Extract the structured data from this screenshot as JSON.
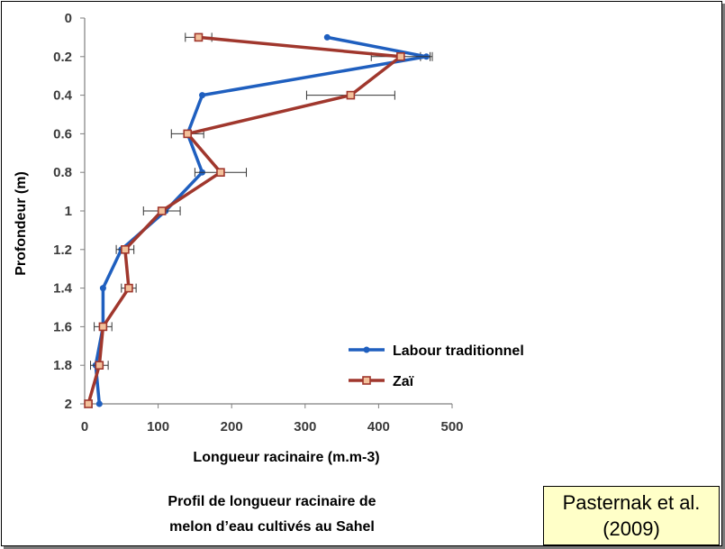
{
  "chart_data": {
    "type": "line",
    "orientation": "depth-profile",
    "xlabel": "Longueur racinaire (m.m-3)",
    "ylabel": "Profondeur (m)",
    "xlim": [
      0,
      500
    ],
    "ylim": [
      2,
      0
    ],
    "x_ticks": [
      "0",
      "100",
      "200",
      "300",
      "400",
      "500"
    ],
    "y_ticks": [
      "0",
      "0.2",
      "0.4",
      "0.6",
      "0.8",
      "1",
      "1.2",
      "1.4",
      "1.6",
      "1.8",
      "2"
    ],
    "grid": false,
    "legend_position": "bottom-right",
    "series": [
      {
        "name": "Labour traditionnel",
        "color": "#1f5fbf",
        "marker": "circle",
        "depth": [
          0.1,
          0.2,
          0.4,
          0.6,
          0.8,
          1.0,
          1.2,
          1.4,
          1.6,
          1.8,
          2.0
        ],
        "values": [
          330,
          465,
          160,
          140,
          160,
          110,
          50,
          25,
          25,
          15,
          20
        ],
        "error": [
          0,
          8,
          0,
          0,
          0,
          0,
          0,
          0,
          0,
          0,
          0
        ]
      },
      {
        "name": "Zaï",
        "color": "#a0372d",
        "marker": "square",
        "depth": [
          0.1,
          0.2,
          0.4,
          0.6,
          0.8,
          1.0,
          1.2,
          1.4,
          1.6,
          1.8,
          2.0
        ],
        "values": [
          155,
          430,
          362,
          140,
          185,
          105,
          55,
          60,
          25,
          20,
          5
        ],
        "error": [
          18,
          40,
          60,
          22,
          35,
          25,
          12,
          10,
          12,
          12,
          5
        ]
      }
    ]
  },
  "caption": {
    "line1": "Profil de longueur racinaire de",
    "line2": "melon d’eau cultivés au Sahel"
  },
  "citation": {
    "line1": "Pasternak et al.",
    "line2": "(2009)"
  }
}
